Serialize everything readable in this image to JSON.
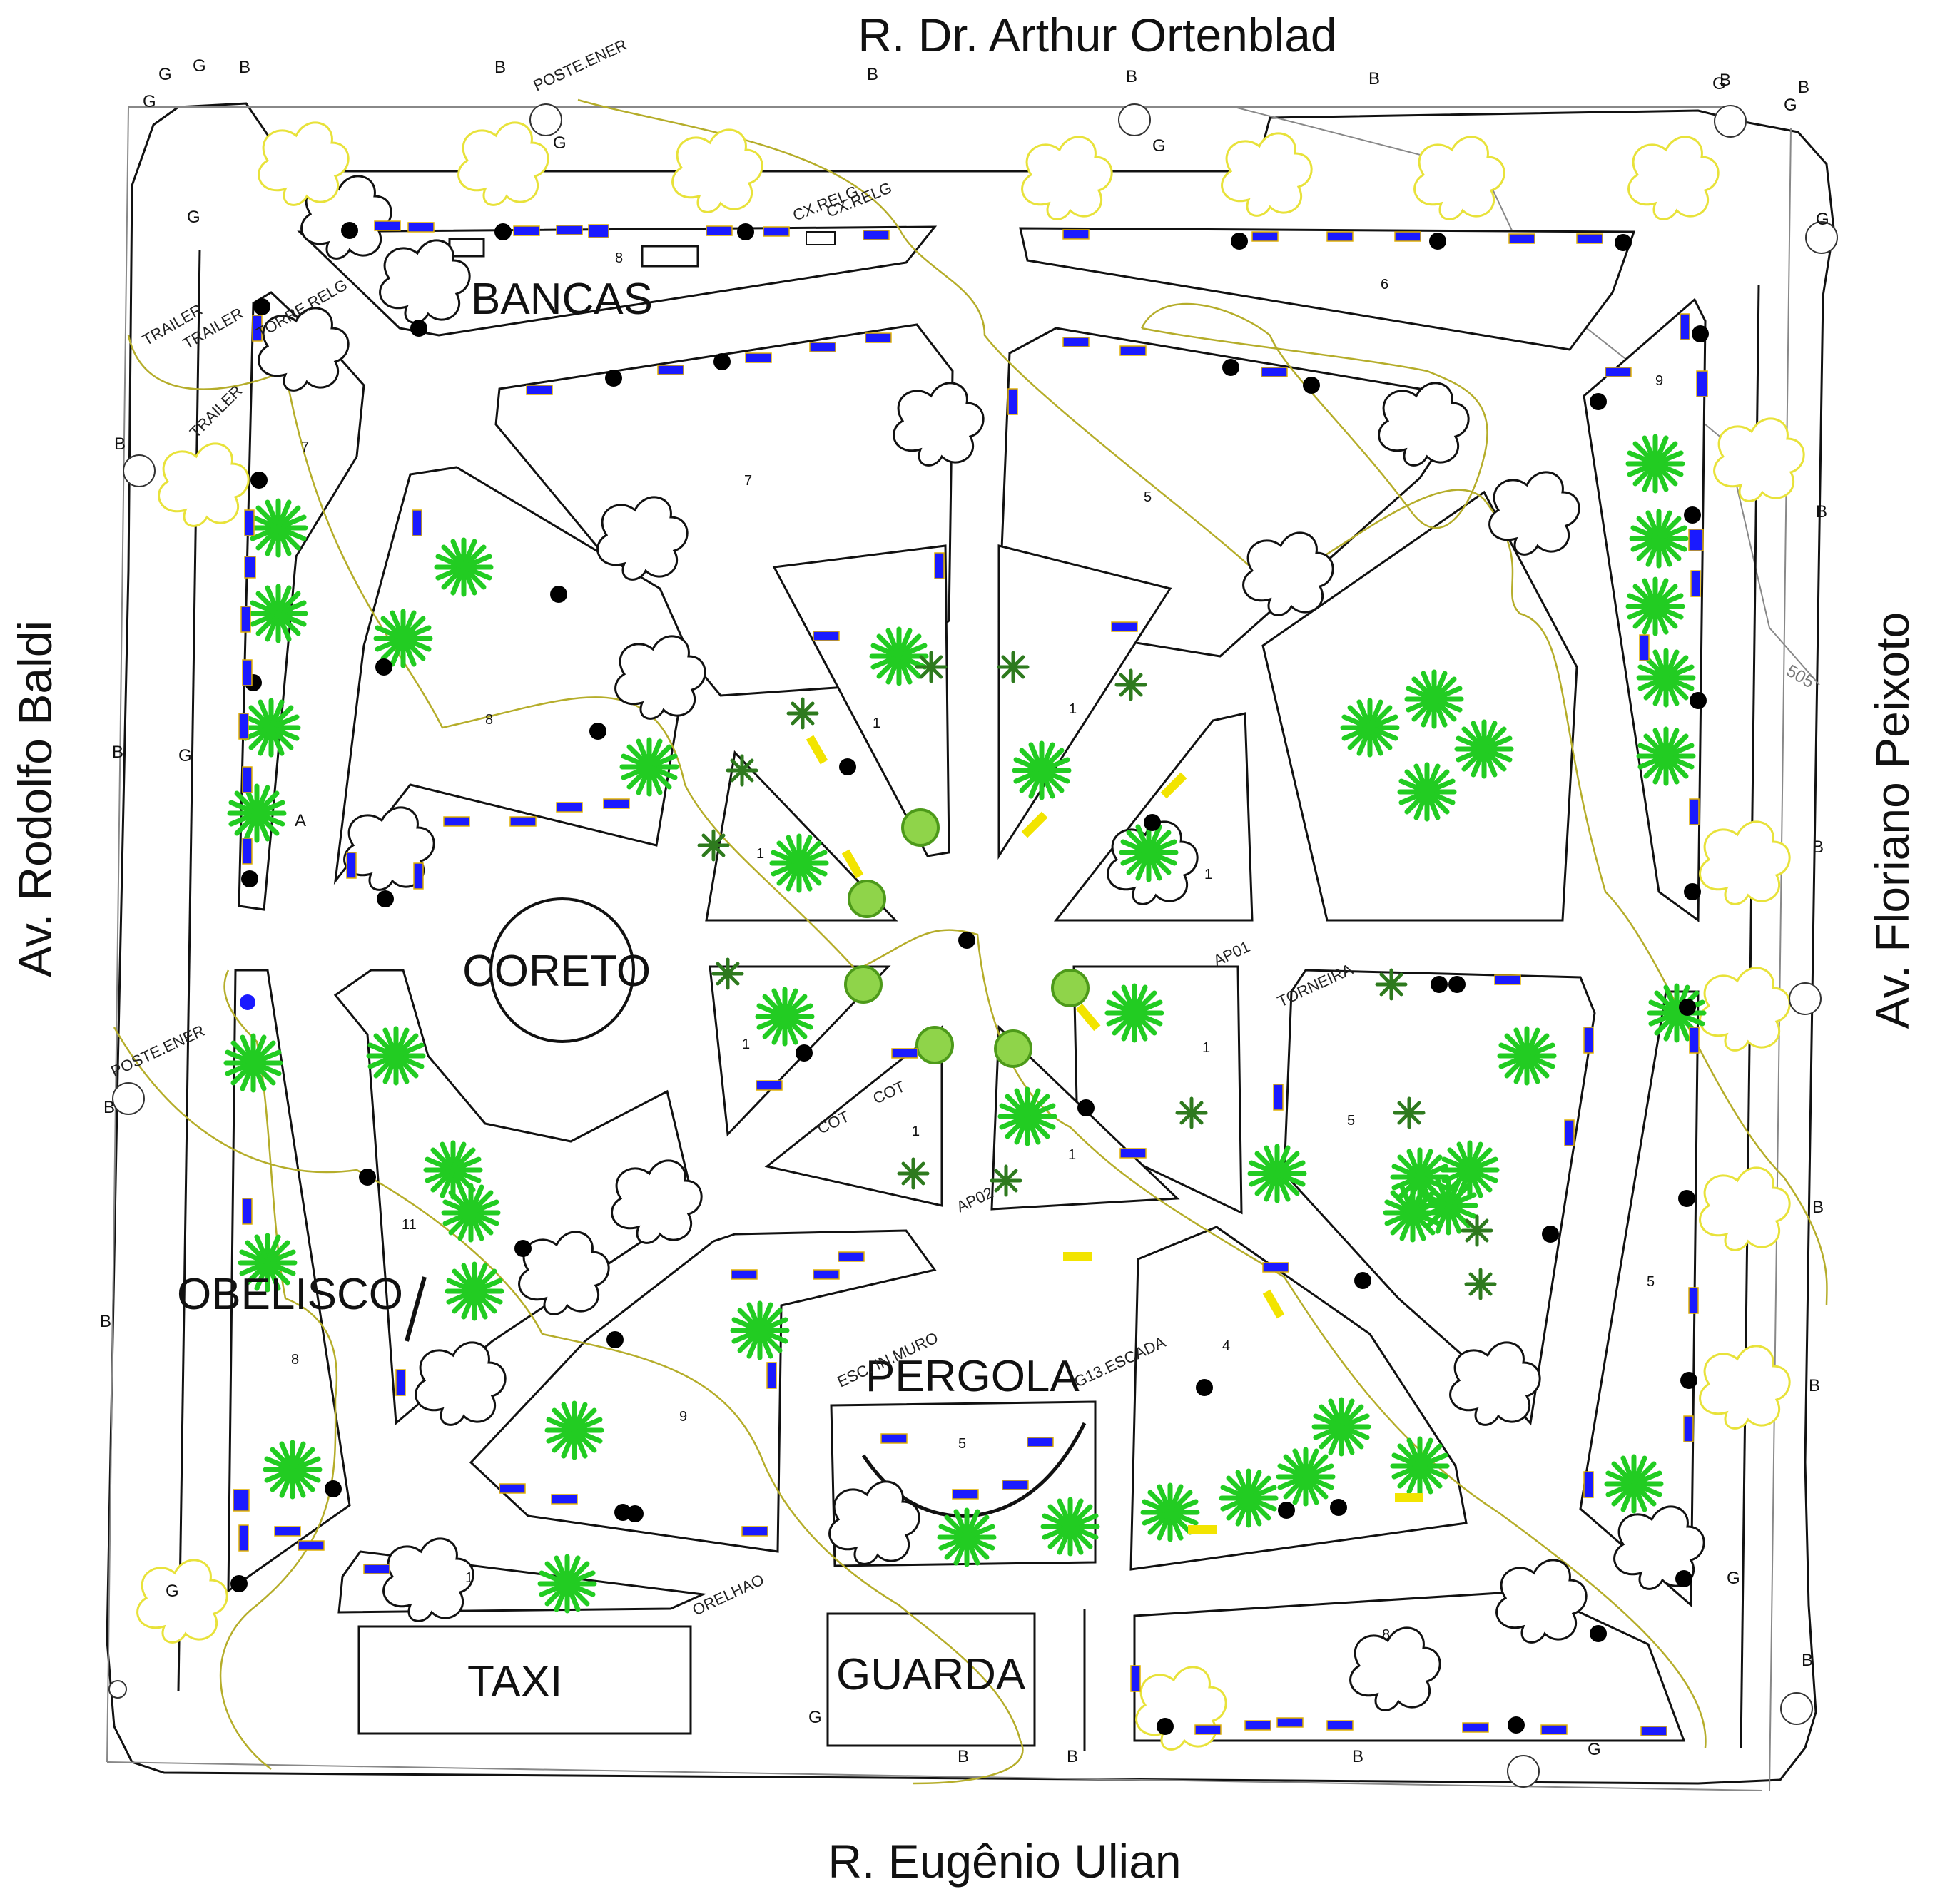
{
  "streets": {
    "top": "R. Dr. Arthur Ortenblad",
    "bottom": "R. Eugênio Ulian",
    "left": "Av. Rodolfo Baldi",
    "right": "Av. Floriano Peixoto"
  },
  "landmarks": {
    "bancas": "BANCAS",
    "coreto": "CORETO",
    "obelisco": "OBELISCO",
    "pergola": "PERGOLA",
    "taxi": "TAXI",
    "guarda": "GUARDA"
  },
  "annotations": {
    "poste_ener_top": "POSTE.ENER",
    "poste_ener_left": "POSTE.ENER",
    "cx_relg_1": "CX.RELG",
    "cx_relg_2": "CX.RELG",
    "trailer_1": "TRAILER",
    "trailer_2": "TRAILER",
    "trailer_3": "TRAILER",
    "torre_relg": "TORRE.RELG",
    "ap01": "AP01",
    "ap02": "AP02",
    "torneira": "TORNEIRA",
    "cot_1": "COT",
    "cot_2": "COT",
    "esc_in_muro": "ESC. IN.MURO",
    "g13_escada": "G13.ESCADA",
    "orelhao": "ORELHAO",
    "contour_505": "505",
    "marker_a": "A"
  },
  "bed_numbers": {
    "bancas_bed": "8",
    "top_right_bed": "6",
    "right_top_bed": "9",
    "left_top_bed": "7",
    "north_west_bed": "7",
    "north_east_bed": "5",
    "west_bed": "8",
    "inner_n1": "1",
    "inner_n2": "1",
    "inner_w1": "1",
    "inner_e1": "1",
    "inner_sw1": "1",
    "inner_se1": "1",
    "inner_s1": "1",
    "inner_s2": "1",
    "south_west_bed": "11",
    "left_bottom_bed": "8",
    "south_bed": "9",
    "pergola_bed": "5",
    "south_east_bed": "4",
    "east_bed": "5",
    "right_bottom_bed": "5",
    "bottom_left_small": "1",
    "bottom_right_bed": "8"
  },
  "point_codes": {
    "b": "B",
    "g": "G"
  },
  "colors": {
    "bench": "#1a1aff",
    "yellow_bench": "#f2e400",
    "palm": "#22cc22",
    "path": "#b5ad2a",
    "tree_yellow": "#e8e23a"
  }
}
